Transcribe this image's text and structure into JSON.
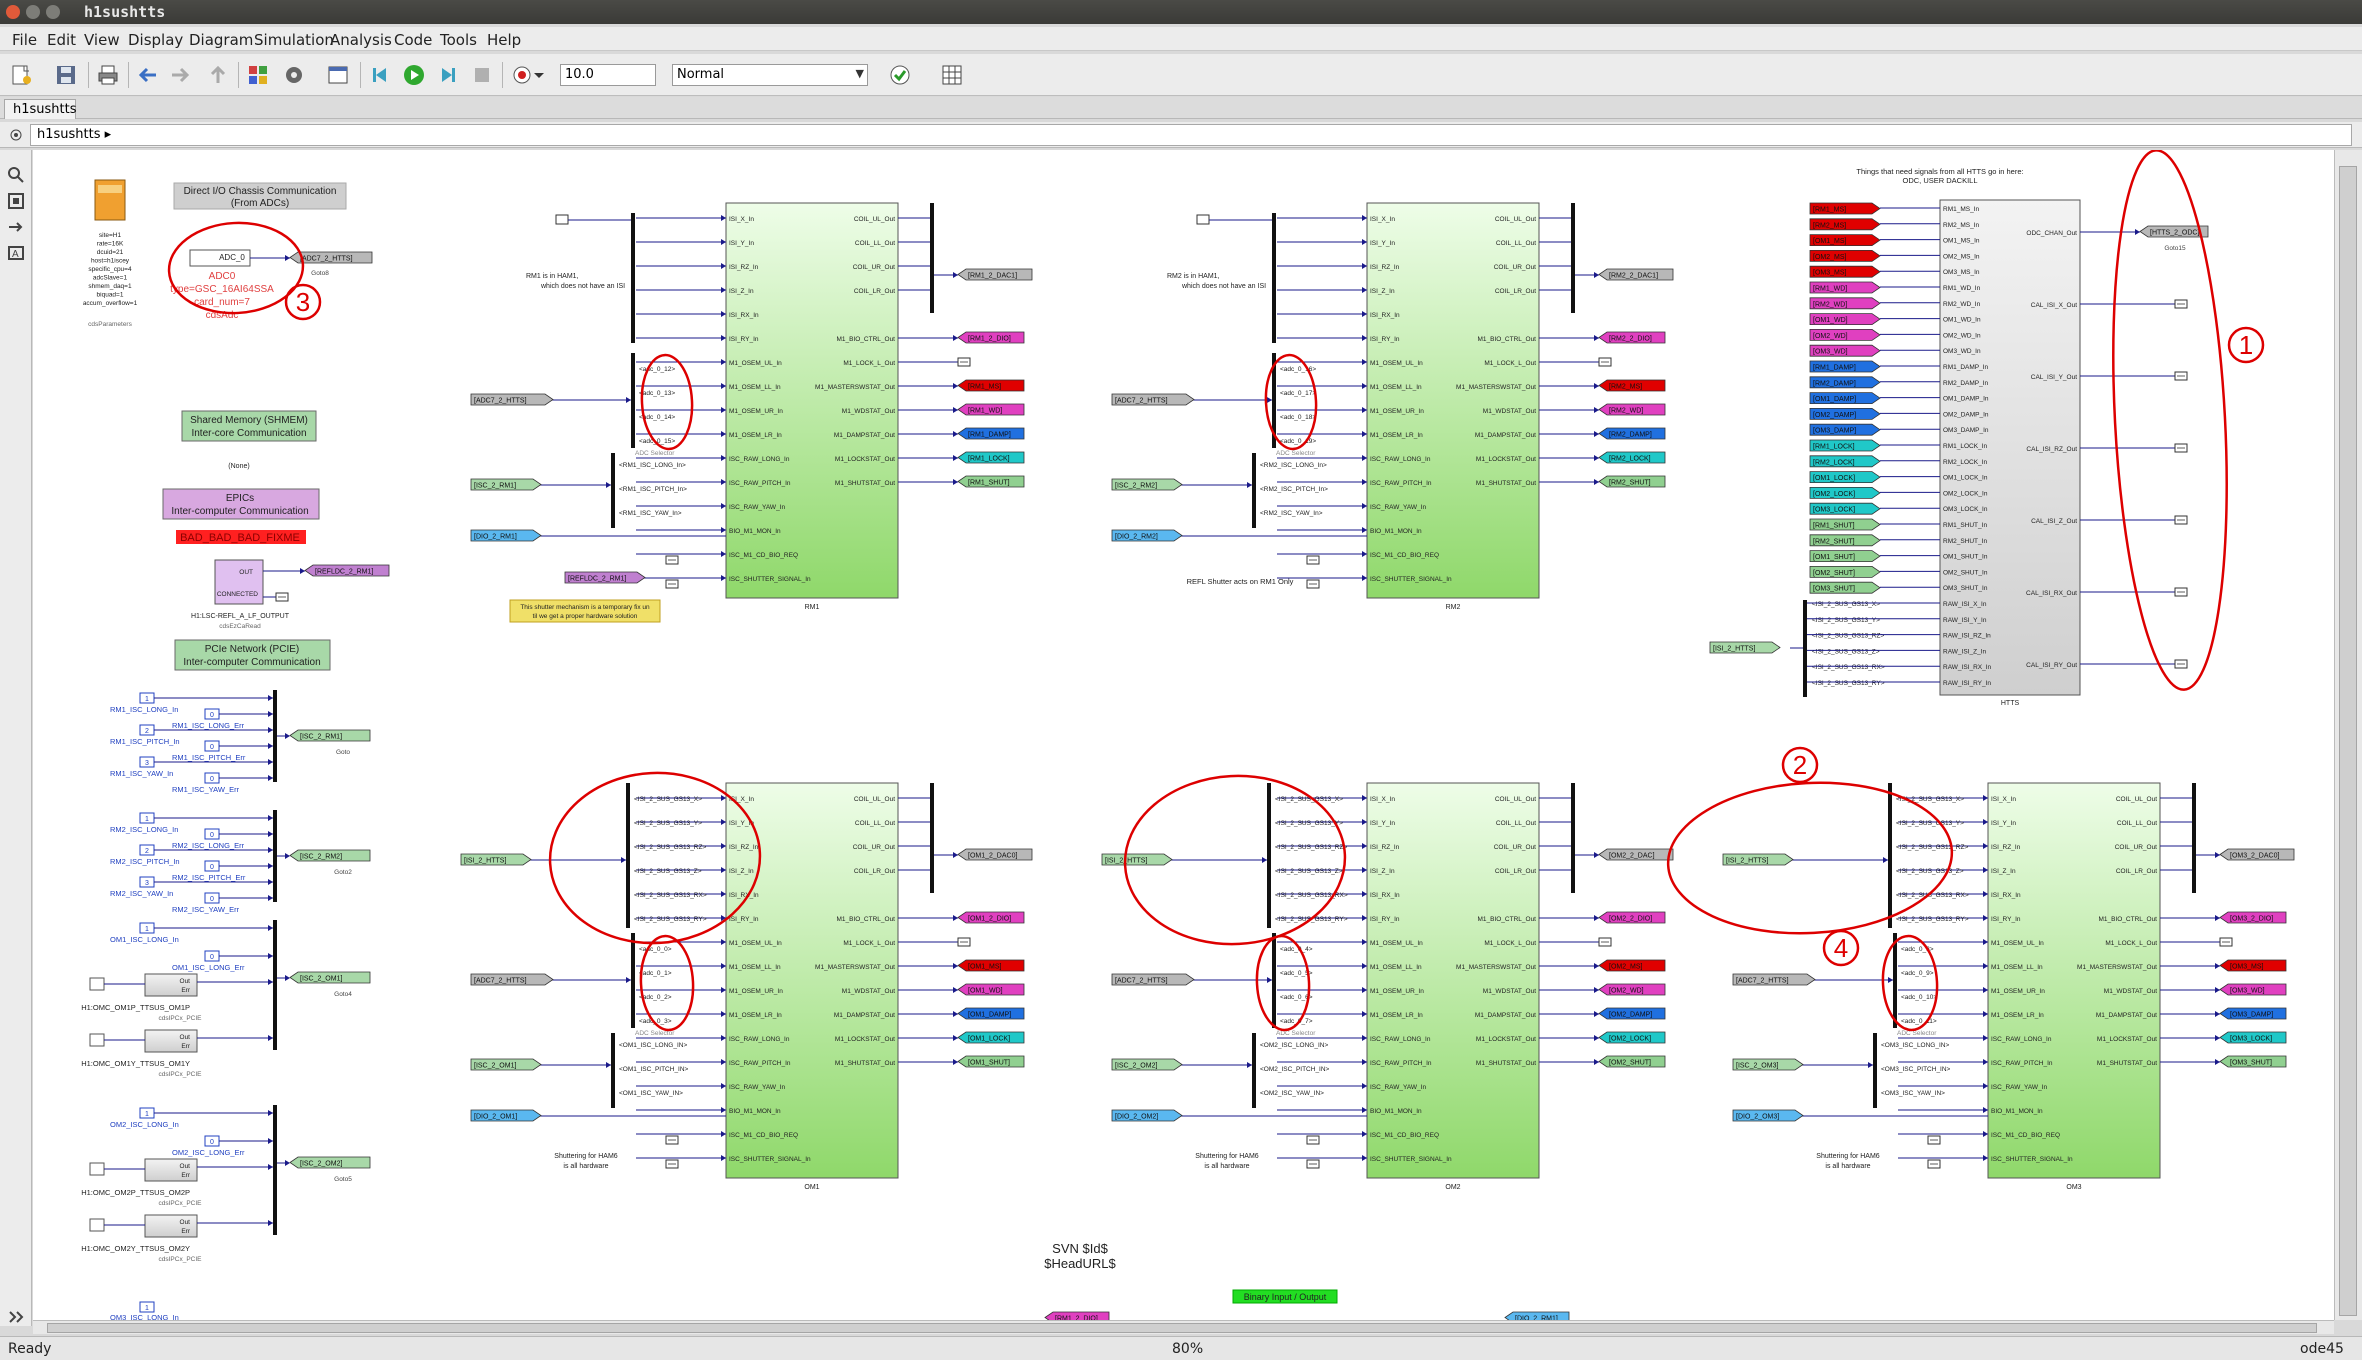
{
  "window": {
    "title": "h1sushtts"
  },
  "menu": [
    "File",
    "Edit",
    "View",
    "Display",
    "Diagram",
    "Simulation",
    "Analysis",
    "Code",
    "Tools",
    "Help"
  ],
  "toolbar": {
    "stop_time": "10.0",
    "sim_mode": "Normal"
  },
  "tabs": [
    "h1sushtts"
  ],
  "address": {
    "path": "h1sushtts"
  },
  "status": {
    "left": "Ready",
    "zoom": "80%",
    "solver": "ode45"
  },
  "diagram": {
    "left": {
      "param_block": {
        "name": "cdsParameters",
        "lines": [
          "site=H1",
          "rate=16K",
          "dcuid=21",
          "host=h1iscey",
          "specific_cpu=4",
          "adcSlave=1",
          "shmem_daq=1",
          "biquad=1",
          "accum_overflow=1"
        ]
      },
      "direct_io": {
        "title": "Direct I/O Chassis Communication",
        "subtitle": "(From ADCs)"
      },
      "adc": {
        "port": "ADC_0",
        "name": "ADC0",
        "type": "type=GSC_16AI64SSA",
        "card": "card_num=7",
        "lib": "cdsAdc",
        "goto": "[ADC7_2_HTTS]",
        "goto_label": "Goto8"
      },
      "shmem": {
        "title": "Shared Memory (SHMEM)",
        "subtitle": "Inter-core Communication",
        "none": "(None)"
      },
      "epics": {
        "title": "EPICs",
        "subtitle": "Inter-computer Communication"
      },
      "bad_label": "BAD_BAD_BAD_FIXME",
      "epics_block": {
        "out": "OUT",
        "connected": "CONNECTED",
        "name": "H1:LSC-REFL_A_LF_OUTPUT",
        "lib": "cdsEzCaRead",
        "goto": "[REFLDC_2_RM1]"
      },
      "pcie": {
        "title": "PCIe Network (PCIE)",
        "subtitle": "Inter-computer Communication"
      },
      "isc_groups": [
        {
          "inputs": [
            "RM1_ISC_LONG_In",
            "RM1_ISC_LONG_Err",
            "RM1_ISC_PITCH_In",
            "RM1_ISC_PITCH_Err",
            "RM1_ISC_YAW_In",
            "RM1_ISC_YAW_Err"
          ],
          "goto": "[ISC_2_RM1]",
          "goto_label": "Goto"
        },
        {
          "inputs": [
            "RM2_ISC_LONG_In",
            "RM2_ISC_LONG_Err",
            "RM2_ISC_PITCH_In",
            "RM2_ISC_PITCH_Err",
            "RM2_ISC_YAW_In",
            "RM2_ISC_YAW_Err"
          ],
          "goto": "[ISC_2_RM2]",
          "goto_label": "Goto2"
        },
        {
          "inputs": [
            "OM1_ISC_LONG_In",
            "OM1_ISC_LONG_Err",
            "H1:OMC_OM1P_TTSUS_OM1P",
            "H1:OMC_OM1Y_TTSUS_OM1Y"
          ],
          "goto": "[ISC_2_OM1]",
          "goto_label": "Goto4",
          "lib": "cdsIPCx_PCIE"
        },
        {
          "inputs": [
            "OM2_ISC_LONG_In",
            "OM2_ISC_LONG_Err",
            "H1:OMC_OM2P_TTSUS_OM2P",
            "H1:OMC_OM2Y_TTSUS_OM2Y"
          ],
          "goto": "[ISC_2_OM2]",
          "goto_label": "Goto5",
          "lib": "cdsIPCx_PCIE"
        }
      ],
      "last_input": "OM3_ISC_LONG_In"
    },
    "rm_blocks": [
      {
        "name": "RM1",
        "note": "RM1 is in HAM1, which does not have an ISI",
        "adc_goto": "[ADC7_2_HTTS]",
        "isc_goto": "[ISC_2_RM1]",
        "dio_goto": "[DIO_2_RM1]",
        "refl_goto": "[REFLDC_2_RM1]",
        "adc_sel": [
          "<adc_0_12>",
          "<adc_0_13>",
          "<adc_0_14>",
          "<adc_0_15>"
        ],
        "isc_sel": [
          "<RM1_ISC_LONG_In>",
          "<RM1_ISC_PITCH_In>",
          "<RM1_ISC_YAW_In>"
        ],
        "warning": "This shutter mechanism is a temporary fix until we get a proper hardware solution",
        "outs": [
          "[RM1_2_DAC1]",
          "[RM1_2_DIO]",
          "[RM1_MS]",
          "[RM1_WD]",
          "[RM1_DAMP]",
          "[RM1_LOCK]",
          "[RM1_SHUT]"
        ]
      },
      {
        "name": "RM2",
        "note": "RM2 is in HAM1, which does not have an ISI",
        "adc_goto": "[ADC7_2_HTTS]",
        "isc_goto": "[ISC_2_RM2]",
        "dio_goto": "[DIO_2_RM2]",
        "refl_note": "REFL Shutter acts on RM1 Only",
        "adc_sel": [
          "<adc_0_16>",
          "<adc_0_17>",
          "<adc_0_18>",
          "<adc_0_19>"
        ],
        "isc_sel": [
          "<RM2_ISC_LONG_In>",
          "<RM2_ISC_PITCH_In>",
          "<RM2_ISC_YAW_In>"
        ],
        "outs": [
          "[RM2_2_DAC1]",
          "[RM2_2_DIO]",
          "[RM2_MS]",
          "[RM2_WD]",
          "[RM2_DAMP]",
          "[RM2_LOCK]",
          "[RM2_SHUT]"
        ]
      }
    ],
    "om_blocks": [
      {
        "name": "OM1",
        "isi_goto": "[ISI_2_HTTS]",
        "adc_goto": "[ADC7_2_HTTS]",
        "isc_goto": "[ISC_2_OM1]",
        "dio_goto": "[DIO_2_OM1]",
        "adc_sel": [
          "<adc_0_0>",
          "<adc_0_1>",
          "<adc_0_2>",
          "<adc_0_3>"
        ],
        "isc_sel": [
          "<OM1_ISC_LONG_IN>",
          "<OM1_ISC_PITCH_IN>",
          "<OM1_ISC_YAW_IN>"
        ],
        "note": "Shuttering for HAM6 is all hardware",
        "outs": [
          "[OM1_2_DAC0]",
          "[OM1_2_DIO]",
          "[OM1_MS]",
          "[OM1_WD]",
          "[OM1_DAMP]",
          "[OM1_LOCK]",
          "[OM1_SHUT]"
        ]
      },
      {
        "name": "OM2",
        "isi_goto": "[ISI_2_HTTS]",
        "adc_goto": "[ADC7_2_HTTS]",
        "isc_goto": "[ISC_2_OM2]",
        "dio_goto": "[DIO_2_OM2]",
        "adc_sel": [
          "<adc_0_4>",
          "<adc_0_5>",
          "<adc_0_6>",
          "<adc_0_7>"
        ],
        "isc_sel": [
          "<OM2_ISC_LONG_IN>",
          "<OM2_ISC_PITCH_IN>",
          "<OM2_ISC_YAW_IN>"
        ],
        "note": "Shuttering for HAM6 is all hardware",
        "outs": [
          "[OM2_2_DAC]",
          "[OM2_2_DIO]",
          "[OM2_MS]",
          "[OM2_WD]",
          "[OM2_DAMP]",
          "[OM2_LOCK]",
          "[OM2_SHUT]"
        ]
      },
      {
        "name": "OM3",
        "isi_goto": "[ISI_2_HTTS]",
        "adc_goto": "[ADC7_2_HTTS]",
        "isc_goto": "[ISC_2_OM3]",
        "dio_goto": "[DIO_2_OM3]",
        "adc_sel": [
          "<adc_0_8>",
          "<adc_0_9>",
          "<adc_0_10>",
          "<adc_0_11>"
        ],
        "isc_sel": [
          "<OM3_ISC_LONG_IN>",
          "<OM3_ISC_PITCH_IN>",
          "<OM3_ISC_YAW_IN>"
        ],
        "note": "Shuttering for HAM6 is all hardware",
        "outs": [
          "[OM3_2_DAC0]",
          "[OM3_2_DIO]",
          "[OM3_MS]",
          "[OM3_WD]",
          "[OM3_DAMP]",
          "[OM3_LOCK]",
          "[OM3_SHUT]"
        ]
      }
    ],
    "block_in_ports": [
      "ISI_X_In",
      "ISI_Y_In",
      "ISI_RZ_In",
      "ISI_Z_In",
      "ISI_RX_In",
      "ISI_RY_In",
      "M1_OSEM_UL_In",
      "M1_OSEM_LL_In",
      "M1_OSEM_UR_In",
      "M1_OSEM_LR_In",
      "ISC_RAW_LONG_In",
      "ISC_RAW_PITCH_In",
      "ISC_RAW_YAW_In",
      "BIO_M1_MON_In",
      "ISC_M1_CD_BIO_REQ",
      "ISC_SHUTTER_SIGNAL_In"
    ],
    "block_out_ports": [
      "COIL_UL_Out",
      "COIL_LL_Out",
      "COIL_UR_Out",
      "COIL_LR_Out",
      "M1_BIO_CTRL_Out",
      "M1_LOCK_L_Out",
      "M1_MASTERSWSTAT_Out",
      "M1_WDSTAT_Out",
      "M1_DAMPSTAT_Out",
      "M1_LOCKSTAT_Out",
      "M1_SHUTSTAT_Out"
    ],
    "isi_sel": [
      "<ISI_2_SUS_GS13_X>",
      "<ISI_2_SUS_GS13_Y>",
      "<ISI_2_SUS_GS13_RZ>",
      "<ISI_2_SUS_GS13_Z>",
      "<ISI_2_SUS_GS13_RX>",
      "<ISI_2_SUS_GS13_RY>"
    ],
    "adc_selector_label": "ADC Selector",
    "htts": {
      "name": "HTTS",
      "header": "Things that need signals from all HTTS go in here:",
      "header2": "ODC, USER DACKILL",
      "goto_in": [
        "[RM1_MS]",
        "[RM2_MS]",
        "[OM1_MS]",
        "[OM2_MS]",
        "[OM3_MS]",
        "[RM1_WD]",
        "[RM2_WD]",
        "[OM1_WD]",
        "[OM2_WD]",
        "[OM3_WD]",
        "[RM1_DAMP]",
        "[RM2_DAMP]",
        "[OM1_DAMP]",
        "[OM2_DAMP]",
        "[OM3_DAMP]",
        "[RM1_LOCK]",
        "[RM2_LOCK]",
        "[OM1_LOCK]",
        "[OM2_LOCK]",
        "[OM3_LOCK]",
        "[RM1_SHUT]",
        "[RM2_SHUT]",
        "[OM1_SHUT]",
        "[OM2_SHUT]",
        "[OM3_SHUT]"
      ],
      "in_ports": [
        "RM1_MS_In",
        "RM2_MS_In",
        "OM1_MS_In",
        "OM2_MS_In",
        "OM3_MS_In",
        "RM1_WD_In",
        "RM2_WD_In",
        "OM1_WD_In",
        "OM2_WD_In",
        "OM3_WD_In",
        "RM1_DAMP_In",
        "RM2_DAMP_In",
        "OM1_DAMP_In",
        "OM2_DAMP_In",
        "OM3_DAMP_In",
        "RM1_LOCK_In",
        "RM2_LOCK_In",
        "OM1_LOCK_In",
        "OM2_LOCK_In",
        "OM3_LOCK_In",
        "RM1_SHUT_In",
        "RM2_SHUT_In",
        "OM1_SHUT_In",
        "OM2_SHUT_In",
        "OM3_SHUT_In",
        "RAW_ISI_X_In",
        "RAW_ISI_Y_In",
        "RAW_ISI_RZ_In",
        "RAW_ISI_Z_In",
        "RAW_ISI_RX_In",
        "RAW_ISI_RY_In"
      ],
      "out_ports": [
        "ODC_CHAN_Out",
        "CAL_ISI_X_Out",
        "CAL_ISI_Y_Out",
        "CAL_ISI_RZ_Out",
        "CAL_ISI_Z_Out",
        "CAL_ISI_RX_Out",
        "CAL_ISI_RY_Out"
      ],
      "odc_goto": "[HTTS_2_ODC]",
      "odc_goto_label": "Goto15",
      "isi_goto": "[ISI_2_HTTS]"
    },
    "svn": [
      "SVN $Id$",
      "$HeadURL$"
    ],
    "binary_io": "Binary Input / Output",
    "bottom_tags": [
      "[RM1_2_DIO]",
      "[DIO_2_RM1]"
    ],
    "annotations": [
      "1",
      "2",
      "3",
      "4"
    ]
  },
  "colors": {
    "block_green_top": "#eefde8",
    "block_green_bottom": "#8fd86a",
    "red": "#e00000",
    "magenta": "#e040c0",
    "blue": "#2070e0",
    "cyan": "#20c8c8",
    "green_tag": "#90d090",
    "gray_tag": "#b8b8b8",
    "purple": "#c080d0",
    "redpen": "#dd0000"
  }
}
